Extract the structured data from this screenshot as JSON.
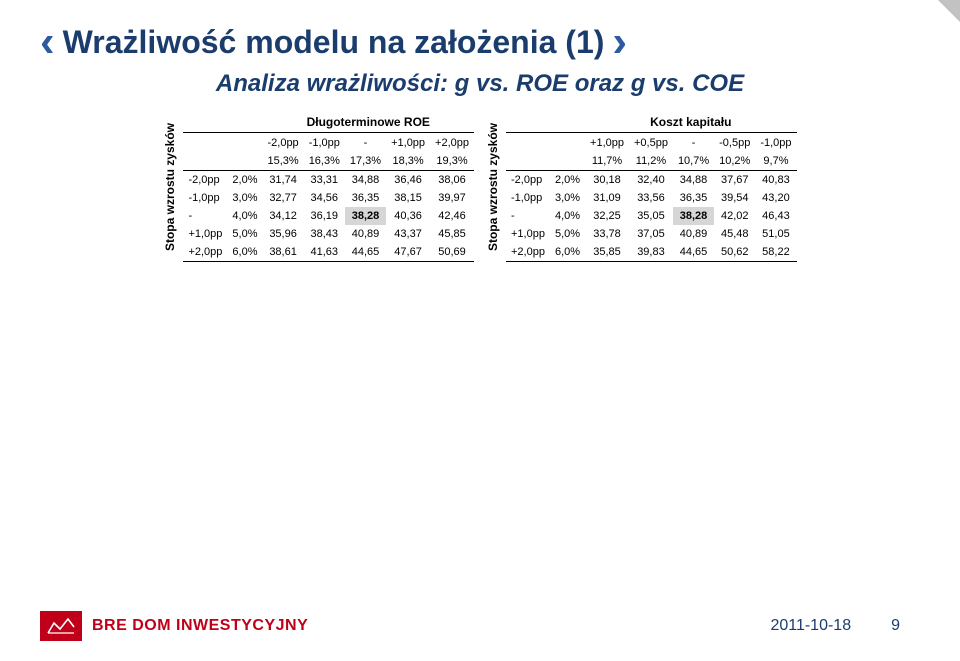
{
  "title": "Wrażliwość modelu na założenia (1)",
  "subtitle": "Analiza wrażliwości: g vs. ROE oraz g vs. COE",
  "sideLabel": "Stopa wzrostu zysków",
  "tableLeft": {
    "title": "Długoterminowe ROE",
    "colDeltas": [
      "-2,0pp",
      "-1,0pp",
      "-",
      "+1,0pp",
      "+2,0pp"
    ],
    "colPcts": [
      "15,3%",
      "16,3%",
      "17,3%",
      "18,3%",
      "19,3%"
    ],
    "rows": [
      {
        "d": "-2,0pp",
        "p": "2,0%",
        "v": [
          "31,74",
          "33,31",
          "34,88",
          "36,46",
          "38,06"
        ]
      },
      {
        "d": "-1,0pp",
        "p": "3,0%",
        "v": [
          "32,77",
          "34,56",
          "36,35",
          "38,15",
          "39,97"
        ]
      },
      {
        "d": "-",
        "p": "4,0%",
        "v": [
          "34,12",
          "36,19",
          "38,28",
          "40,36",
          "42,46"
        ]
      },
      {
        "d": "+1,0pp",
        "p": "5,0%",
        "v": [
          "35,96",
          "38,43",
          "40,89",
          "43,37",
          "45,85"
        ]
      },
      {
        "d": "+2,0pp",
        "p": "6,0%",
        "v": [
          "38,61",
          "41,63",
          "44,65",
          "47,67",
          "50,69"
        ]
      }
    ],
    "highlight": {
      "row": 2,
      "col": 2
    }
  },
  "tableRight": {
    "title": "Koszt kapitału",
    "colDeltas": [
      "+1,0pp",
      "+0,5pp",
      "-",
      "-0,5pp",
      "-1,0pp"
    ],
    "colPcts": [
      "11,7%",
      "11,2%",
      "10,7%",
      "10,2%",
      "9,7%"
    ],
    "rows": [
      {
        "d": "-2,0pp",
        "p": "2,0%",
        "v": [
          "30,18",
          "32,40",
          "34,88",
          "37,67",
          "40,83"
        ]
      },
      {
        "d": "-1,0pp",
        "p": "3,0%",
        "v": [
          "31,09",
          "33,56",
          "36,35",
          "39,54",
          "43,20"
        ]
      },
      {
        "d": "-",
        "p": "4,0%",
        "v": [
          "32,25",
          "35,05",
          "38,28",
          "42,02",
          "46,43"
        ]
      },
      {
        "d": "+1,0pp",
        "p": "5,0%",
        "v": [
          "33,78",
          "37,05",
          "40,89",
          "45,48",
          "51,05"
        ]
      },
      {
        "d": "+2,0pp",
        "p": "6,0%",
        "v": [
          "35,85",
          "39,83",
          "44,65",
          "50,62",
          "58,22"
        ]
      }
    ],
    "highlight": {
      "row": 2,
      "col": 2
    }
  },
  "footer": {
    "logoBadge": "BRE",
    "logoText": "BRE DOM INWESTYCYJNY",
    "date": "2011-10-18",
    "page": "9"
  },
  "colors": {
    "titleColor": "#1b3d6d",
    "chevron": "#2e5aa0",
    "highlight": "#d6d6d6",
    "logoRed": "#c00018"
  }
}
